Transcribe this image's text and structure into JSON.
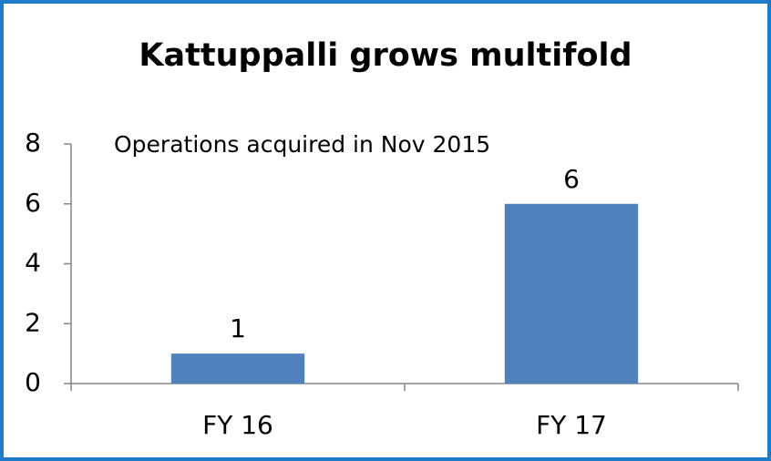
{
  "chart_data": {
    "type": "bar",
    "title": "Kattuppalli grows multifold",
    "annotation": "Operations acquired in Nov 2015",
    "categories": [
      "FY 16",
      "FY 17"
    ],
    "values": [
      1,
      6
    ],
    "color": "#4f81bd",
    "ylim": [
      0,
      8
    ],
    "yticks": [
      0,
      2,
      4,
      6,
      8
    ],
    "grid": false
  }
}
